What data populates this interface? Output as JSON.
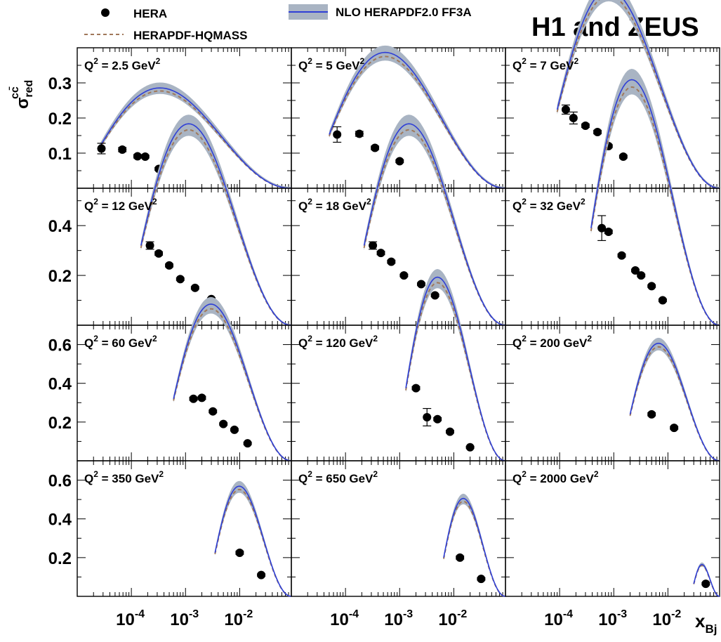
{
  "header": {
    "experiment": "H1 and ZEUS",
    "legend_data": "HERA",
    "legend_nlo": "NLO HERAPDF2.0 FF3A",
    "legend_hqmass": "HERAPDF-HQMASS"
  },
  "axes": {
    "ylabel_main": "σ",
    "ylabel_sup": "cc̄",
    "ylabel_sub": "red",
    "xlabel_main": "x",
    "xlabel_sub": "Bj",
    "x_base": "10",
    "x_exponents": [
      "-4",
      "-3",
      "-2"
    ],
    "q2_prefix": "Q",
    "q2_unit": "GeV"
  },
  "colors": {
    "data": "#000000",
    "nlo_line": "#2f3fd6",
    "nlo_band": "#a9b4c3",
    "hqmass": "#a0785a"
  },
  "chart_data": {
    "type": "scatter",
    "xscale": "log",
    "xlim": [
      1e-05,
      0.09
    ],
    "series_names": [
      "HERA",
      "NLO HERAPDF2.0 FF3A",
      "HERAPDF-HQMASS"
    ],
    "panels": [
      {
        "q2": "2.5",
        "ylim": [
          0,
          0.4
        ],
        "yticks": [
          0.1,
          0.2,
          0.3
        ],
        "points": [
          [
            2.8e-05,
            0.113,
            0.015
          ],
          [
            6.8e-05,
            0.11,
            0.006
          ],
          [
            0.00013,
            0.091,
            0.005
          ],
          [
            0.00018,
            0.09,
            0.004
          ],
          [
            0.00032,
            0.055,
            0.004
          ]
        ],
        "theory_xmin": 2.5e-05
      },
      {
        "q2": "5",
        "ylim": [
          0,
          0.4
        ],
        "yticks": [
          0.1,
          0.2,
          0.3
        ],
        "points": [
          [
            7e-05,
            0.153,
            0.022
          ],
          [
            0.00018,
            0.155,
            0.007
          ],
          [
            0.00035,
            0.115,
            0.005
          ],
          [
            0.001,
            0.077,
            0.004
          ]
        ],
        "theory_xmin": 5e-05
      },
      {
        "q2": "7",
        "ylim": [
          0,
          0.4
        ],
        "yticks": [
          0.1,
          0.2,
          0.3
        ],
        "points": [
          [
            0.00013,
            0.224,
            0.013
          ],
          [
            0.00018,
            0.2,
            0.017
          ],
          [
            0.0003,
            0.178,
            0.005
          ],
          [
            0.0005,
            0.16,
            0.005
          ],
          [
            0.0008,
            0.12,
            0.004
          ],
          [
            0.0015,
            0.09,
            0.004
          ]
        ],
        "theory_xmin": 9e-05
      },
      {
        "q2": "12",
        "ylim": [
          0,
          0.55
        ],
        "yticks": [
          0.2,
          0.4
        ],
        "points": [
          [
            0.00022,
            0.32,
            0.015
          ],
          [
            0.00032,
            0.288,
            0.007
          ],
          [
            0.0005,
            0.24,
            0.006
          ],
          [
            0.0008,
            0.185,
            0.005
          ],
          [
            0.0015,
            0.15,
            0.005
          ],
          [
            0.003,
            0.105,
            0.005
          ]
        ],
        "theory_xmin": 0.00015
      },
      {
        "q2": "18",
        "ylim": [
          0,
          0.55
        ],
        "yticks": [
          0.2,
          0.4
        ],
        "points": [
          [
            0.00032,
            0.32,
            0.015
          ],
          [
            0.00045,
            0.29,
            0.007
          ],
          [
            0.0007,
            0.255,
            0.006
          ],
          [
            0.0012,
            0.2,
            0.005
          ],
          [
            0.0025,
            0.165,
            0.005
          ],
          [
            0.0045,
            0.12,
            0.005
          ]
        ],
        "theory_xmin": 0.00022
      },
      {
        "q2": "32",
        "ylim": [
          0,
          0.55
        ],
        "yticks": [
          0.2,
          0.4
        ],
        "points": [
          [
            0.0006,
            0.39,
            0.05
          ],
          [
            0.0008,
            0.375,
            0.007
          ],
          [
            0.0014,
            0.28,
            0.006
          ],
          [
            0.0025,
            0.22,
            0.005
          ],
          [
            0.0032,
            0.2,
            0.005
          ],
          [
            0.005,
            0.157,
            0.005
          ],
          [
            0.008,
            0.1,
            0.005
          ]
        ],
        "theory_xmin": 0.00038
      },
      {
        "q2": "60",
        "ylim": [
          0,
          0.7
        ],
        "yticks": [
          0.2,
          0.4,
          0.6
        ],
        "points": [
          [
            0.0014,
            0.32,
            0.008
          ],
          [
            0.002,
            0.325,
            0.008
          ],
          [
            0.0032,
            0.255,
            0.007
          ],
          [
            0.005,
            0.19,
            0.006
          ],
          [
            0.008,
            0.16,
            0.006
          ],
          [
            0.014,
            0.09,
            0.006
          ]
        ],
        "theory_xmin": 0.0006
      },
      {
        "q2": "120",
        "ylim": [
          0,
          0.7
        ],
        "yticks": [
          0.2,
          0.4,
          0.6
        ],
        "points": [
          [
            0.002,
            0.375,
            0.008
          ],
          [
            0.0032,
            0.225,
            0.045
          ],
          [
            0.005,
            0.215,
            0.008
          ],
          [
            0.0085,
            0.15,
            0.007
          ],
          [
            0.02,
            0.07,
            0.005
          ]
        ],
        "theory_xmin": 0.0013
      },
      {
        "q2": "200",
        "ylim": [
          0,
          0.7
        ],
        "yticks": [
          0.2,
          0.4,
          0.6
        ],
        "points": [
          [
            0.005,
            0.24,
            0.008
          ],
          [
            0.013,
            0.17,
            0.007
          ]
        ],
        "theory_xmin": 0.002
      },
      {
        "q2": "350",
        "ylim": [
          0,
          0.7
        ],
        "yticks": [
          0.2,
          0.4,
          0.6
        ],
        "points": [
          [
            0.01,
            0.225,
            0.008
          ],
          [
            0.025,
            0.11,
            0.006
          ]
        ],
        "theory_xmin": 0.0035
      },
      {
        "q2": "650",
        "ylim": [
          0,
          0.7
        ],
        "yticks": [
          0.2,
          0.4,
          0.6
        ],
        "points": [
          [
            0.013,
            0.2,
            0.008
          ],
          [
            0.032,
            0.09,
            0.006
          ]
        ],
        "theory_xmin": 0.0065
      },
      {
        "q2": "2000",
        "ylim": [
          0,
          0.7
        ],
        "yticks": [
          0.2,
          0.4,
          0.6
        ],
        "points": [
          [
            0.05,
            0.065,
            0.006
          ]
        ],
        "theory_xmin": 0.03
      }
    ]
  }
}
